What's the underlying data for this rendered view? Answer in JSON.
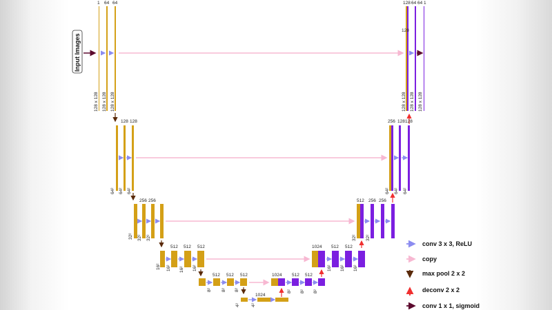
{
  "input_label": "Input Images",
  "colors": {
    "encoder": "#D4A017",
    "decoder": "#7B1FE0",
    "conv_arrow": "#8C8CF0",
    "copy_arrow": "#F7B8D2",
    "pool_arrow": "#5A2A0A",
    "deconv_arrow": "#F03030",
    "final_arrow": "#5C0A2E"
  },
  "top_labels": {
    "enc1": [
      "1",
      "64",
      "64"
    ],
    "enc2": [
      "128",
      "128"
    ],
    "enc3": [
      "256",
      "256"
    ],
    "enc4": [
      "512",
      "512",
      "512"
    ],
    "enc5": [
      "512",
      "512",
      "512"
    ],
    "bottom": "1024",
    "dec5": [
      "1024",
      "512",
      "512"
    ],
    "dec4": [
      "1024",
      "512",
      "512"
    ],
    "dec3": [
      "512",
      "256",
      "256"
    ],
    "dec2": [
      "256",
      "128",
      "128"
    ],
    "dec1": [
      "128",
      "64",
      "64",
      "1"
    ],
    "dec1_mid": "128"
  },
  "dims": {
    "l1": "128 x 128",
    "l2": "64²",
    "l3": "32²",
    "l4": "16²",
    "l5": "8²",
    "l6": "4²"
  },
  "legend": [
    {
      "icon": "conv-arrow",
      "label": "conv 3 x 3, ReLU"
    },
    {
      "icon": "copy-arrow",
      "label": "copy"
    },
    {
      "icon": "pool-arrow",
      "label": "max pool 2 x 2"
    },
    {
      "icon": "deconv-arrow",
      "label": "deconv 2 x 2"
    },
    {
      "icon": "final-arrow",
      "label": "conv 1 x 1, sigmoid"
    }
  ]
}
